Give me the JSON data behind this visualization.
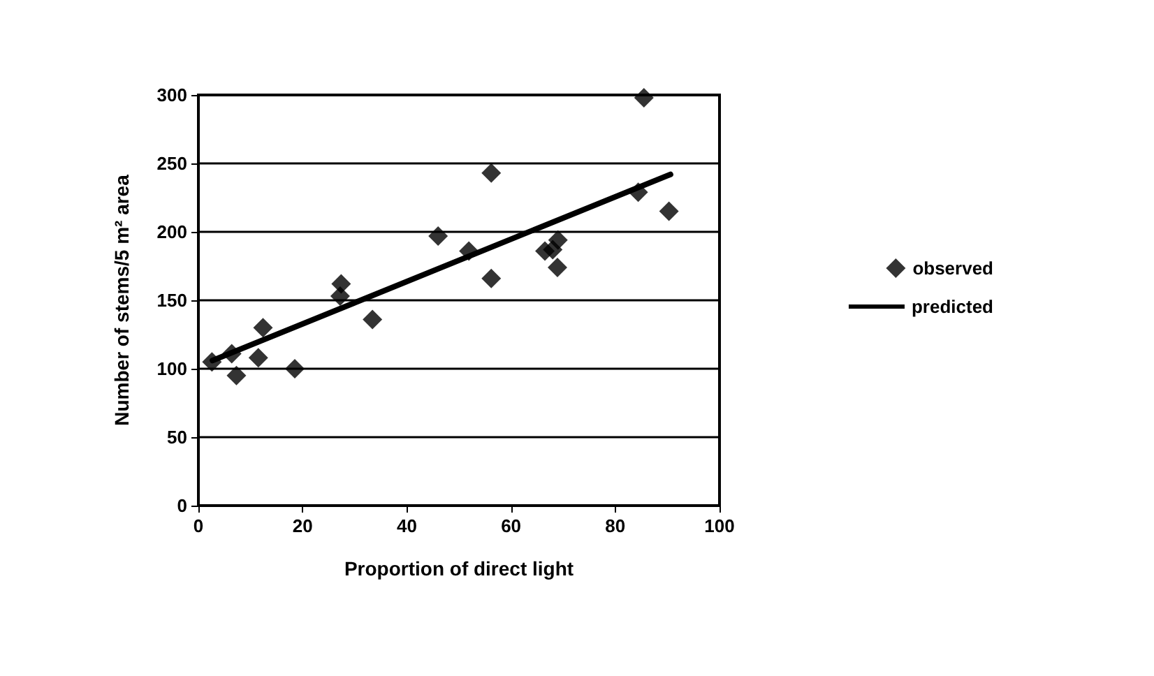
{
  "chart_data": {
    "type": "scatter",
    "xlabel": "Proportion of direct light",
    "ylabel": "Number of stems/5 m² area",
    "xlim": [
      0,
      100
    ],
    "xticks": [
      0,
      20,
      40,
      60,
      80,
      100
    ],
    "ylim": [
      0,
      300
    ],
    "yticks": [
      0,
      50,
      100,
      150,
      200,
      250,
      300
    ],
    "grid": "y",
    "legend": "right",
    "series": [
      {
        "name": "observed",
        "type": "scatter",
        "marker": "diamond",
        "color": "#000000",
        "x": [
          2.6,
          6.4,
          7.3,
          11.5,
          12.4,
          18.5,
          27.4,
          27.2,
          33.4,
          46,
          51.9,
          56.2,
          56.2,
          66.5,
          68,
          69,
          68.9,
          85.5,
          84.4,
          90.3
        ],
        "values": [
          105,
          111,
          95,
          108,
          130,
          100,
          162,
          153,
          136,
          197,
          186,
          243,
          166,
          186,
          187,
          194,
          174,
          298,
          229,
          215
        ]
      },
      {
        "name": "predicted",
        "type": "line",
        "marker": "none",
        "line_style": "solid",
        "color": "#000000",
        "x": [
          2.7,
          90.6
        ],
        "values": [
          106,
          242
        ]
      }
    ]
  }
}
